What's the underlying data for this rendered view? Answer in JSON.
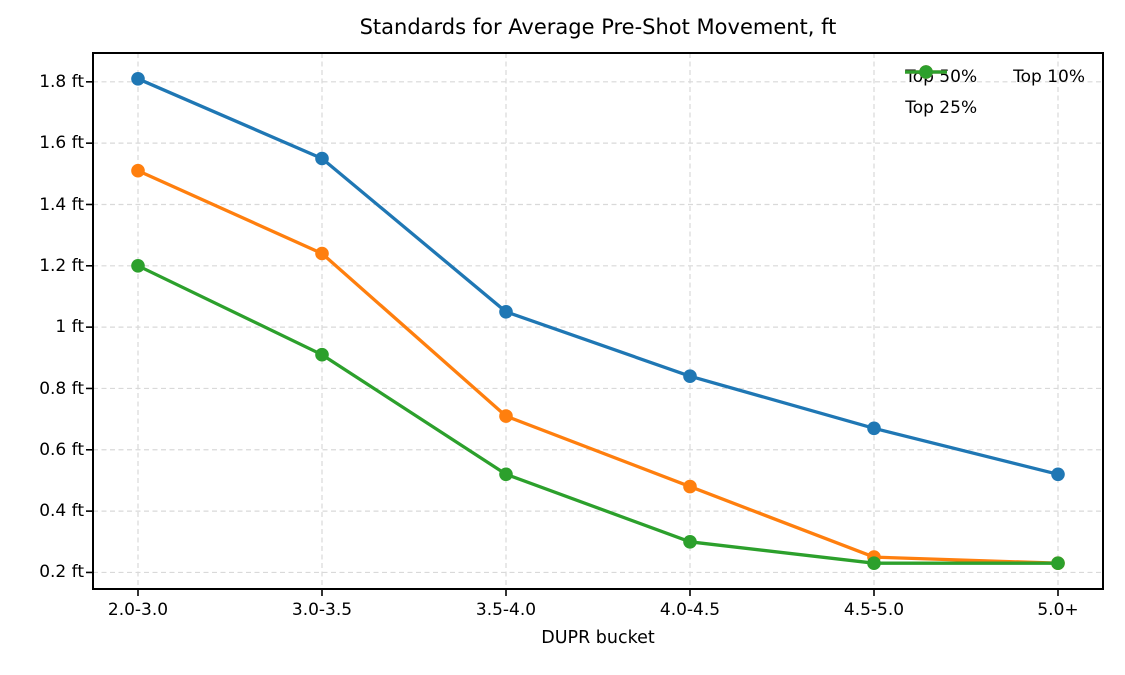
{
  "chart_data": {
    "type": "line",
    "title": "Standards for Average Pre-Shot Movement, ft",
    "xlabel": "DUPR bucket",
    "ylabel": "",
    "categories": [
      "2.0-3.0",
      "3.0-3.5",
      "3.5-4.0",
      "4.0-4.5",
      "4.5-5.0",
      "5.0+"
    ],
    "series": [
      {
        "name": "Top 50%",
        "color": "#1f77b4",
        "values": [
          1.81,
          1.55,
          1.05,
          0.84,
          0.67,
          0.52
        ]
      },
      {
        "name": "Top 25%",
        "color": "#ff7f0e",
        "values": [
          1.51,
          1.24,
          0.71,
          0.48,
          0.25,
          0.23
        ]
      },
      {
        "name": "Top 10%",
        "color": "#2ca02c",
        "values": [
          1.2,
          0.91,
          0.52,
          0.3,
          0.23,
          0.23
        ]
      }
    ],
    "yticks": [
      0.2,
      0.4,
      0.6,
      0.8,
      1.0,
      1.2,
      1.4,
      1.6,
      1.8
    ],
    "ytick_labels": [
      "0.2 ft",
      "0.4 ft",
      "0.6 ft",
      "0.8 ft",
      "1 ft",
      "1.2 ft",
      "1.4 ft",
      "1.6 ft",
      "1.8 ft"
    ],
    "ylim": [
      0.146,
      1.894
    ],
    "grid": true,
    "grid_style": "dashed",
    "legend": {
      "position": "upper-right",
      "columns": 2,
      "entries": [
        "Top 50%",
        "Top 25%",
        "Top 10%"
      ]
    },
    "style": {
      "grid_color": "#d9d9d9",
      "spine_color": "#000000",
      "tick_color": "#000000",
      "text_color": "#000000",
      "background": "#ffffff",
      "line_width": 3.3,
      "marker_radius": 6.8
    }
  }
}
